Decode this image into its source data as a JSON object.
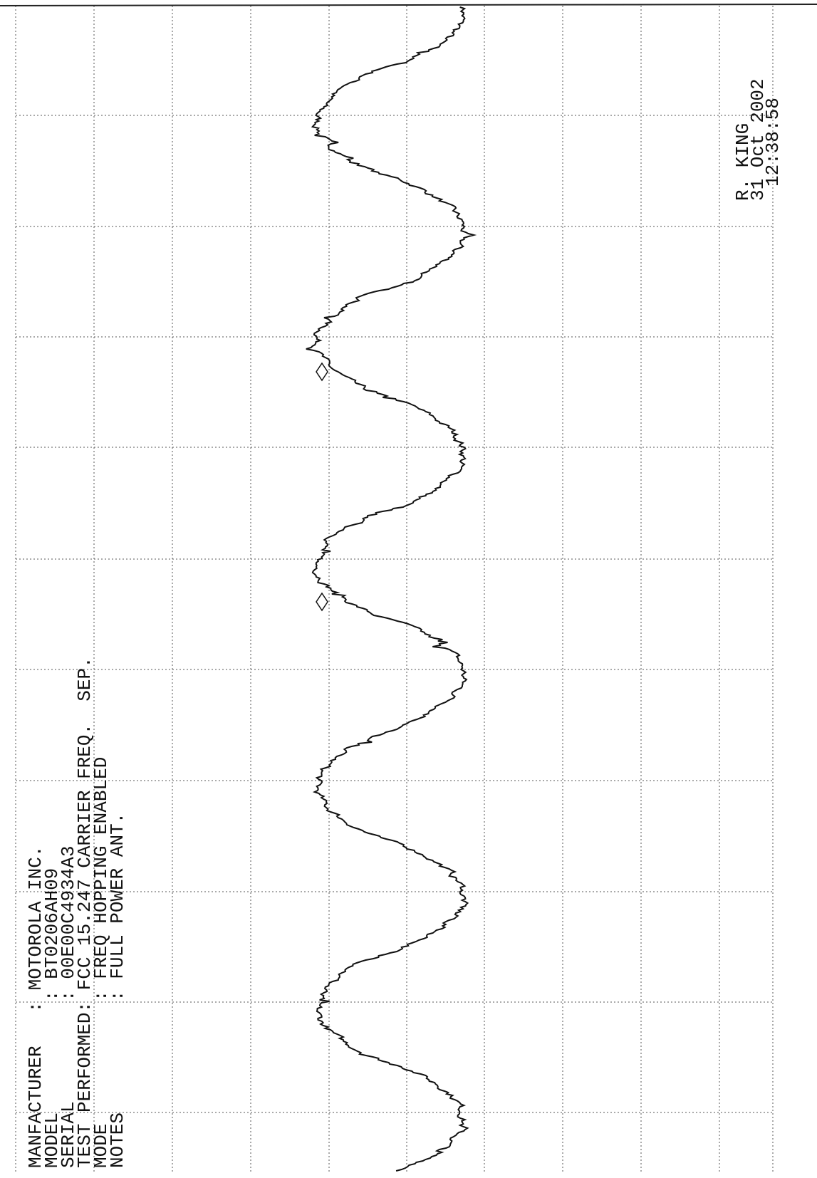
{
  "info": {
    "lines": [
      "MANFACTURER   : MOTOROLA INC.",
      "MODEL          : BT0206AH09",
      "SERIAL         : 00E00C4934A3",
      "TEST PERFORMED: FCC 15.247 CARRIER FREQ.  SEP.",
      "MODE           : FREQ HOPPING ENABLED",
      "NOTES          : FULL POWER ANT."
    ]
  },
  "stamp": {
    "operator": "R. KING",
    "date": "31 Oct 2002",
    "time": "12:38:58"
  }
}
